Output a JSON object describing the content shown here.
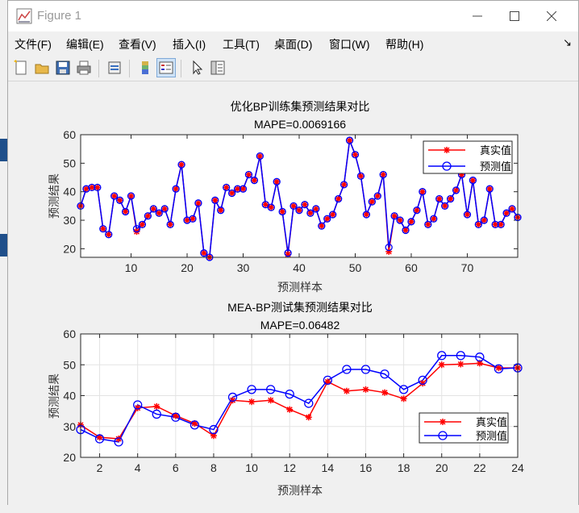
{
  "window": {
    "title": "Figure 1"
  },
  "menu": [
    "文件(F)",
    "编辑(E)",
    "查看(V)",
    "插入(I)",
    "工具(T)",
    "桌面(D)",
    "窗口(W)",
    "帮助(H)"
  ],
  "toolbar_icons": [
    "new-figure-icon",
    "open-file-icon",
    "save-icon",
    "print-icon",
    "print-preview-icon",
    "colorbar-icon",
    "legend-icon",
    "pointer-icon",
    "property-editor-icon"
  ],
  "colors": {
    "true_value": "#ff0000",
    "predicted": "#0000ff"
  },
  "chart_data": [
    {
      "type": "line",
      "title": "优化BP训练集预测结果对比",
      "subtitle": "MAPE=0.0069166",
      "xlabel": "预测样本",
      "ylabel": "预测结果",
      "xlim": [
        1,
        79
      ],
      "ylim": [
        17,
        60
      ],
      "xticks": [
        10,
        20,
        30,
        40,
        50,
        60,
        70
      ],
      "yticks": [
        20,
        30,
        40,
        50,
        60
      ],
      "grid": false,
      "legend": "top-right",
      "series": [
        {
          "name": "真实值",
          "marker": "star",
          "values": [
            35,
            41,
            41.5,
            41.5,
            27,
            25,
            38.5,
            37,
            33,
            38.5,
            26,
            28.5,
            31.5,
            34,
            32.5,
            34,
            28.5,
            41,
            49.5,
            30,
            30.5,
            36,
            18.5,
            17,
            37,
            33.5,
            41.5,
            39.5,
            41,
            41,
            46,
            44,
            52.5,
            35.5,
            34.5,
            43.5,
            33,
            18,
            35,
            33.5,
            35.5,
            32.5,
            34,
            28,
            30.5,
            32,
            37.5,
            42.5,
            58,
            53,
            45.5,
            32,
            36.5,
            38.5,
            46,
            19,
            31.5,
            30,
            26.5,
            29.5,
            33.5,
            40,
            28.5,
            30.5,
            37.5,
            35,
            37.5,
            40.5,
            46,
            32,
            44,
            28.5,
            30,
            41,
            28.5,
            28.5,
            32.5,
            34,
            31
          ]
        },
        {
          "name": "预测值",
          "marker": "circle",
          "values": [
            35,
            41,
            41.5,
            41.5,
            27,
            25,
            38.5,
            37,
            33,
            38.5,
            27,
            28.5,
            31.5,
            34,
            32.5,
            34,
            28.5,
            41,
            49.5,
            30,
            30.5,
            36,
            18.5,
            17,
            37,
            33.5,
            41.5,
            39.5,
            41,
            41,
            46,
            44,
            52.5,
            35.5,
            34.5,
            43.5,
            33,
            18.5,
            35,
            33.5,
            35.5,
            32.5,
            34,
            28,
            30.5,
            32,
            37.5,
            42.5,
            58,
            53,
            45.5,
            32,
            36.5,
            38.5,
            46,
            20.5,
            31.5,
            30,
            26.5,
            29.5,
            33.5,
            40,
            28.5,
            30.5,
            37.5,
            35,
            37.5,
            40.5,
            46,
            32,
            44,
            28.5,
            30,
            41,
            28.5,
            28.5,
            32.5,
            34,
            31
          ]
        }
      ]
    },
    {
      "type": "line",
      "title": "MEA-BP测试集预测结果对比",
      "subtitle": "MAPE=0.06482",
      "xlabel": "预测样本",
      "ylabel": "预测结果",
      "xlim": [
        1,
        24
      ],
      "ylim": [
        20,
        60
      ],
      "xticks": [
        2,
        4,
        6,
        8,
        10,
        12,
        14,
        16,
        18,
        20,
        22,
        24
      ],
      "yticks": [
        20,
        30,
        40,
        50,
        60
      ],
      "grid": true,
      "legend": "bottom-right",
      "series": [
        {
          "name": "真实值",
          "marker": "star",
          "values": [
            30.5,
            26.5,
            26,
            36,
            36.5,
            33.5,
            31,
            27,
            38.5,
            38,
            38.5,
            35.5,
            33,
            44.5,
            41.5,
            42,
            41,
            39,
            44,
            50,
            50.2,
            50.5,
            49,
            49
          ]
        },
        {
          "name": "预测值",
          "marker": "circle",
          "values": [
            29,
            26,
            25,
            37,
            34,
            33,
            30.5,
            29,
            39.5,
            42,
            42,
            40.5,
            37.5,
            45,
            48.5,
            48.5,
            47,
            42,
            45,
            53,
            53,
            52.5,
            48.7,
            49
          ]
        }
      ]
    }
  ]
}
